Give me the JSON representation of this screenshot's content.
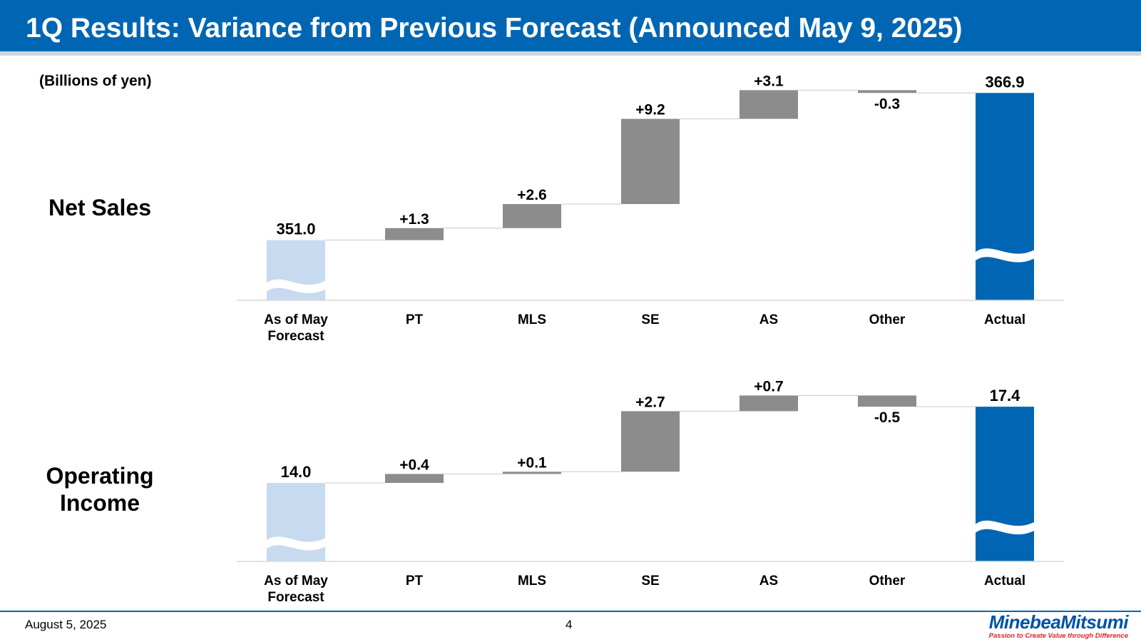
{
  "header": {
    "title": "1Q Results: Variance from Previous Forecast (Announced May 9, 2025)"
  },
  "unit_label": "(Billions of yen)",
  "rows": {
    "net_sales": {
      "label_lines": [
        "Net Sales"
      ]
    },
    "operating_income": {
      "label_lines": [
        "Operating",
        "Income"
      ]
    }
  },
  "footer": {
    "date": "August 5, 2025",
    "page": "4"
  },
  "logo": {
    "name": "MinebeaMitsumi",
    "tagline": "Passion to Create Value through Difference"
  },
  "colors": {
    "title_bar": "#0066b3",
    "start_bar": "#c8daf0",
    "delta_bar": "#8c8c8c",
    "end_bar": "#0066b3",
    "logo_blue": "#0052a5",
    "logo_red": "#d8262b"
  },
  "chart_data": [
    {
      "type": "bar",
      "subtype": "waterfall",
      "name": "Net Sales",
      "categories": [
        "As of May\nForecast",
        "PT",
        "MLS",
        "SE",
        "AS",
        "Other",
        "Actual"
      ],
      "values": [
        351.0,
        1.3,
        2.6,
        9.2,
        3.1,
        -0.3,
        366.9
      ],
      "data_labels": [
        "351.0",
        "+1.3",
        "+2.6",
        "+9.2",
        "+3.1",
        "-0.3",
        "366.9"
      ],
      "kinds": [
        "total",
        "delta",
        "delta",
        "delta",
        "delta",
        "delta",
        "total"
      ],
      "ylim": [
        344.5,
        367.0
      ],
      "axis_break": true,
      "xlabel": "",
      "ylabel": ""
    },
    {
      "type": "bar",
      "subtype": "waterfall",
      "name": "Operating Income",
      "categories": [
        "As of May\nForecast",
        "PT",
        "MLS",
        "SE",
        "AS",
        "Other",
        "Actual"
      ],
      "values": [
        14.0,
        0.4,
        0.1,
        2.7,
        0.7,
        -0.5,
        17.4
      ],
      "data_labels": [
        "14.0",
        "+0.4",
        "+0.1",
        "+2.7",
        "+0.7",
        "-0.5",
        "17.4"
      ],
      "kinds": [
        "total",
        "delta",
        "delta",
        "delta",
        "delta",
        "delta",
        "total"
      ],
      "ylim": [
        10.5,
        17.5
      ],
      "axis_break": true,
      "xlabel": "",
      "ylabel": ""
    }
  ]
}
